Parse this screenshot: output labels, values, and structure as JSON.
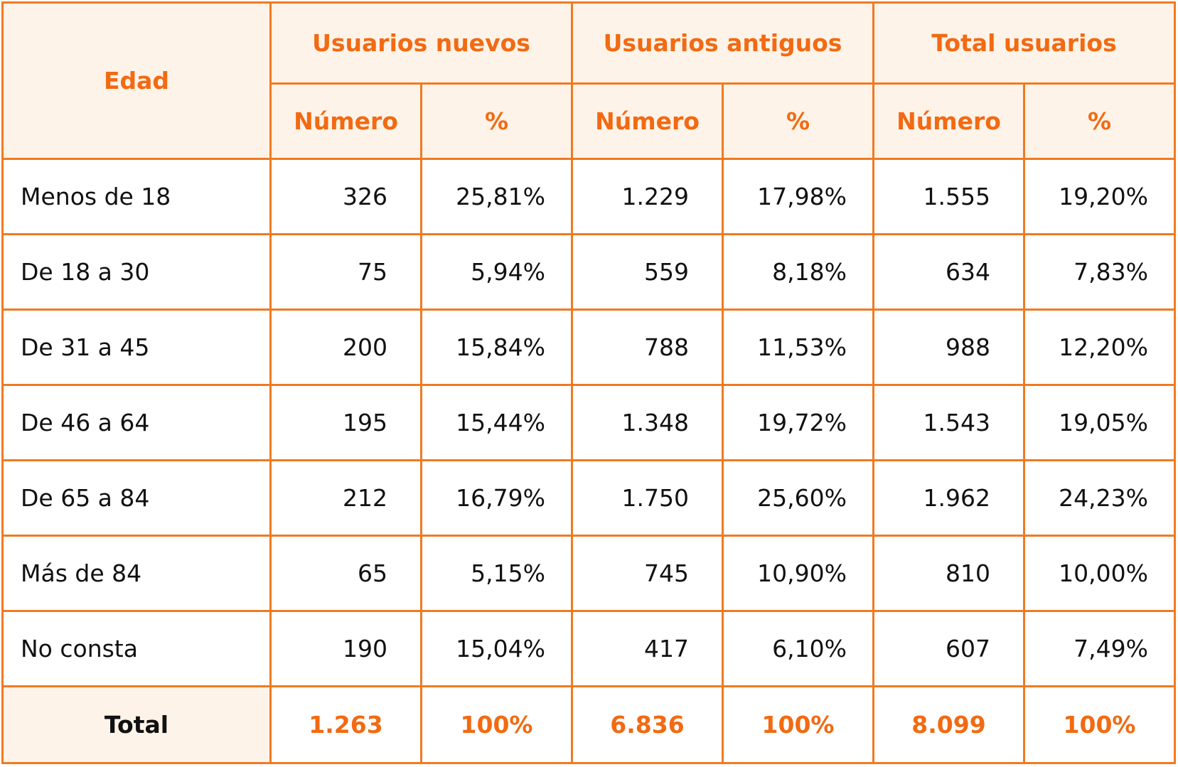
{
  "table": {
    "header": {
      "edad": "Edad",
      "groups": [
        "Usuarios nuevos",
        "Usuarios antiguos",
        "Total usuarios"
      ],
      "numero": "Número",
      "pct": "%"
    },
    "rows": [
      {
        "label": "Menos de 18",
        "values": [
          "326",
          "25,81%",
          "1.229",
          "17,98%",
          "1.555",
          "19,20%"
        ]
      },
      {
        "label": "De 18 a 30",
        "values": [
          "75",
          "5,94%",
          "559",
          "8,18%",
          "634",
          "7,83%"
        ]
      },
      {
        "label": "De 31 a 45",
        "values": [
          "200",
          "15,84%",
          "788",
          "11,53%",
          "988",
          "12,20%"
        ]
      },
      {
        "label": "De 46 a 64",
        "values": [
          "195",
          "15,44%",
          "1.348",
          "19,72%",
          "1.543",
          "19,05%"
        ]
      },
      {
        "label": "De 65 a 84",
        "values": [
          "212",
          "16,79%",
          "1.750",
          "25,60%",
          "1.962",
          "24,23%"
        ]
      },
      {
        "label": "Más de 84",
        "values": [
          "65",
          "5,15%",
          "745",
          "10,90%",
          "810",
          "10,00%"
        ]
      },
      {
        "label": "No consta",
        "values": [
          "190",
          "15,04%",
          "417",
          "6,10%",
          "607",
          "7,49%"
        ]
      }
    ],
    "total": {
      "label": "Total",
      "values": [
        "1.263",
        "100%",
        "6.836",
        "100%",
        "8.099",
        "100%"
      ]
    }
  }
}
